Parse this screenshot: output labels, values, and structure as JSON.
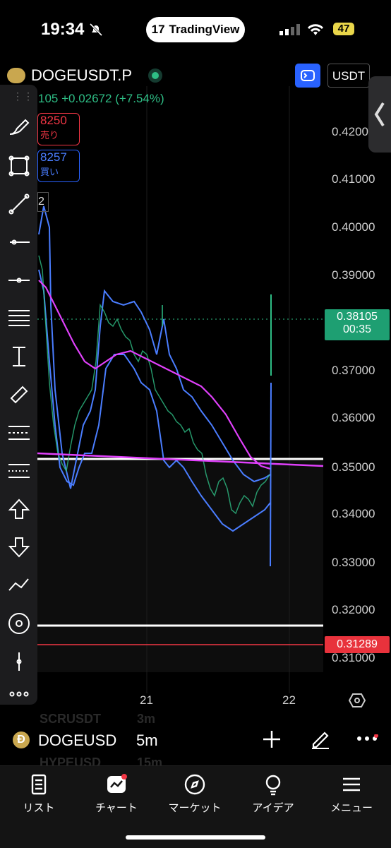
{
  "status": {
    "time": "19:34",
    "battery": "47",
    "app_pill": "TradingView"
  },
  "header": {
    "symbol": "DOGEUSDT.P",
    "currency": "USDT",
    "price_change": "105 +0.02672 (+7.54%)"
  },
  "orders": {
    "sell_price": "8250",
    "sell_label": "売り",
    "buy_price": "8257",
    "buy_label": "買い",
    "small_label": "2"
  },
  "price_axis": {
    "ticks": [
      "0.4200",
      "0.41000",
      "0.40000",
      "0.39000",
      "0.37000",
      "0.36000",
      "0.35000",
      "0.34000",
      "0.33000",
      "0.32000",
      "0.31000"
    ],
    "current_price": "0.38105",
    "countdown": "00:35",
    "alert_price": "0.31289"
  },
  "time_axis": {
    "labels": [
      "21",
      "22"
    ]
  },
  "chart_footer": {
    "symbol": "DOGEUSD",
    "interval": "5m",
    "ghost_top": "SCRUSDT",
    "ghost_top_interval": "3m",
    "ghost_bottom": "HYPEUSD",
    "ghost_bottom_interval": "15m"
  },
  "tabs": [
    {
      "label": "リスト",
      "icon": "list-icon"
    },
    {
      "label": "チャート",
      "icon": "chart-icon"
    },
    {
      "label": "マーケット",
      "icon": "compass-icon"
    },
    {
      "label": "アイデア",
      "icon": "lightbulb-icon"
    },
    {
      "label": "メニュー",
      "icon": "menu-icon"
    }
  ],
  "colors": {
    "up": "#2ebd85",
    "down": "#f23645",
    "accent": "#2962ff",
    "ma": "#e040fb",
    "bands": "#4a7dff"
  }
}
